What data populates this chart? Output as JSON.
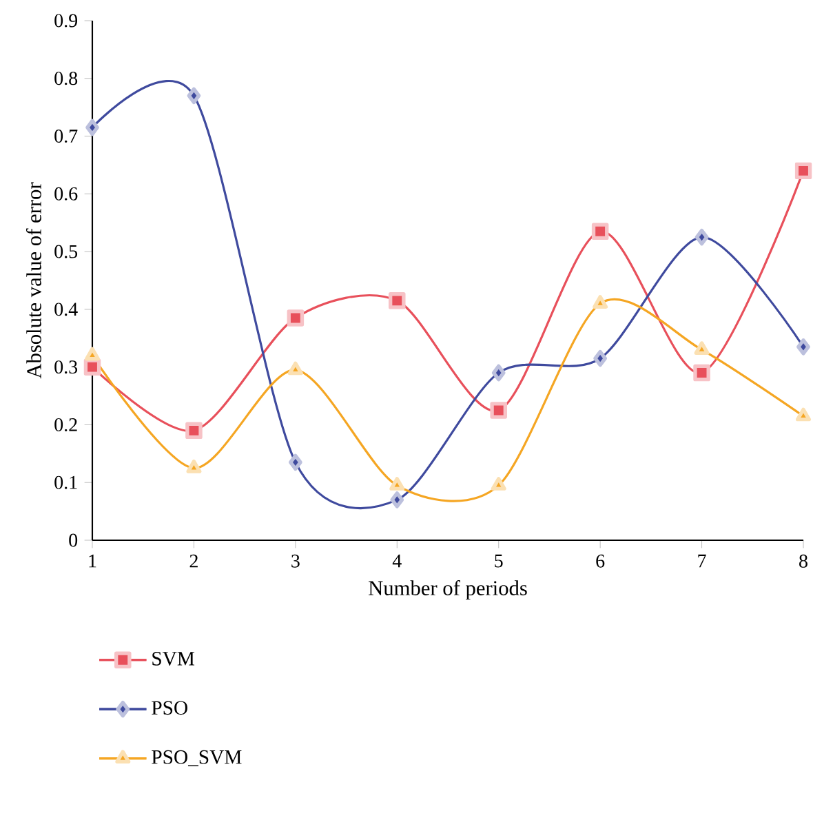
{
  "chart_data": {
    "type": "line",
    "xlabel": "Number of periods",
    "ylabel": "Absolute value of error",
    "x": [
      1,
      2,
      3,
      4,
      5,
      6,
      7,
      8
    ],
    "series": [
      {
        "name": "SVM",
        "color": "#e8505b",
        "marker": "square",
        "values": [
          0.3,
          0.19,
          0.385,
          0.415,
          0.225,
          0.535,
          0.29,
          0.64
        ]
      },
      {
        "name": "PSO",
        "color": "#3f4a9e",
        "marker": "diamond",
        "values": [
          0.715,
          0.77,
          0.135,
          0.07,
          0.29,
          0.315,
          0.525,
          0.335
        ]
      },
      {
        "name": "PSO_SVM",
        "color": "#f5a623",
        "marker": "triangle",
        "values": [
          0.32,
          0.125,
          0.295,
          0.095,
          0.095,
          0.41,
          0.33,
          0.215
        ]
      }
    ],
    "xlim": [
      1,
      8
    ],
    "xticks": [
      1,
      2,
      3,
      4,
      5,
      6,
      7,
      8
    ],
    "ylim": [
      0,
      0.9
    ],
    "yticks": [
      0,
      0.1,
      0.2,
      0.3,
      0.4,
      0.5,
      0.6,
      0.7,
      0.8,
      0.9
    ],
    "grid": false,
    "legend": "bottom",
    "line_style": "solid"
  }
}
